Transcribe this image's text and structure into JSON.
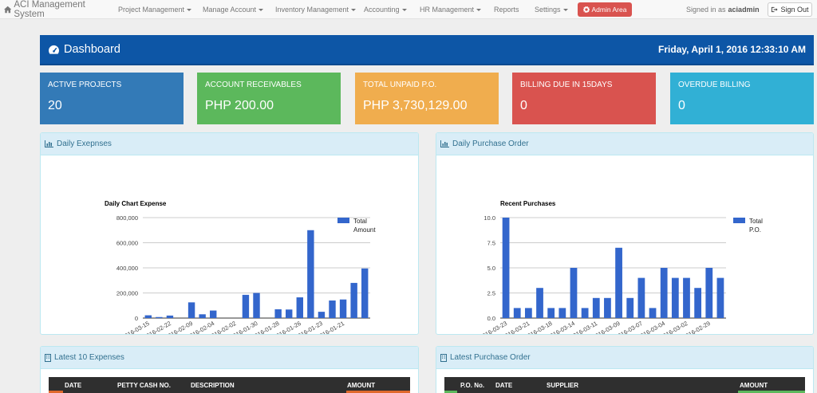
{
  "navbar": {
    "brand": "ACI Management System",
    "items": [
      {
        "label": "Project Management",
        "dropdown": true
      },
      {
        "label": "Manage Account",
        "dropdown": true
      },
      {
        "label": "Inventory Management",
        "dropdown": true
      },
      {
        "label": "Accounting",
        "dropdown": true
      },
      {
        "label": "HR Management",
        "dropdown": true
      },
      {
        "label": "Reports",
        "dropdown": false
      },
      {
        "label": "Settings",
        "dropdown": true
      }
    ],
    "admin_label": "Admin Area",
    "signed_in_prefix": "Signed in as",
    "username": "aciadmin",
    "signout_label": "Sign Out"
  },
  "header": {
    "title": "Dashboard",
    "datetime": "Friday, April 1, 2016 12:33:10 AM"
  },
  "stats": [
    {
      "label": "ACTIVE PROJECTS",
      "value": "20",
      "color": "#337ab7"
    },
    {
      "label": "ACCOUNT RECEIVABLES",
      "value": "PHP 200.00",
      "color": "#5cb85c"
    },
    {
      "label": "TOTAL UNPAID P.O.",
      "value": "PHP 3,730,129.00",
      "color": "#f0ad4e"
    },
    {
      "label": "BILLING DUE IN 15DAYS",
      "value": "0",
      "color": "#d9534f"
    },
    {
      "label": "OVERDUE BILLING",
      "value": "0",
      "color": "#31b0d5"
    }
  ],
  "panels": {
    "expenses_chart": "Daily Exepnses",
    "purchase_chart": "Daily Purchase Order",
    "latest_expenses": "Latest 10 Expenses",
    "latest_purchase": "Latest Purchase Order"
  },
  "expenses_table": {
    "columns": [
      "DATE",
      "PETTY CASH NO.",
      "DESCRIPTION",
      "AMOUNT"
    ]
  },
  "purchase_table": {
    "columns": [
      "P.O. No.",
      "DATE",
      "SUPPLIER",
      "AMOUNT"
    ]
  },
  "chart_data": [
    {
      "type": "bar",
      "title": "Daily Chart Expense",
      "series": [
        {
          "name": "Total Amount",
          "values": [
            22000,
            8000,
            20000,
            0,
            125000,
            30000,
            60000,
            0,
            0,
            185000,
            200000,
            0,
            70000,
            68000,
            165000,
            700000,
            50000,
            140000,
            148000,
            280000,
            395000
          ]
        }
      ],
      "x_tick_labels": [
        "2016-03-15",
        "2016-02-22",
        "2016-02-09",
        "2016-02-04",
        "2016-02-02",
        "2016-01-30",
        "2016-01-28",
        "2016-01-26",
        "2016-01-23",
        "2016-01-21"
      ],
      "y_ticks": [
        "0",
        "200,000",
        "400,000",
        "600,000",
        "800,000"
      ],
      "ylim": [
        0,
        800000
      ],
      "legend": "right",
      "grid": true,
      "color": "#3366cc"
    },
    {
      "type": "bar",
      "title": "Recent Purchases",
      "series": [
        {
          "name": "Total P.O.",
          "values": [
            10,
            1,
            1,
            3,
            1,
            1,
            5,
            1,
            2,
            2,
            7,
            2,
            4,
            1,
            5,
            4,
            4,
            3,
            5,
            4
          ]
        }
      ],
      "x_tick_labels": [
        "2016-03-23",
        "2016-03-21",
        "2016-03-18",
        "2016-03-14",
        "2016-03-11",
        "2016-03-09",
        "2016-03-07",
        "2016-03-04",
        "2016-03-02",
        "2016-02-29"
      ],
      "y_ticks": [
        "0.0",
        "2.5",
        "5.0",
        "7.5",
        "10.0"
      ],
      "ylim": [
        0,
        10
      ],
      "legend": "right",
      "grid": true,
      "color": "#3366cc"
    }
  ]
}
